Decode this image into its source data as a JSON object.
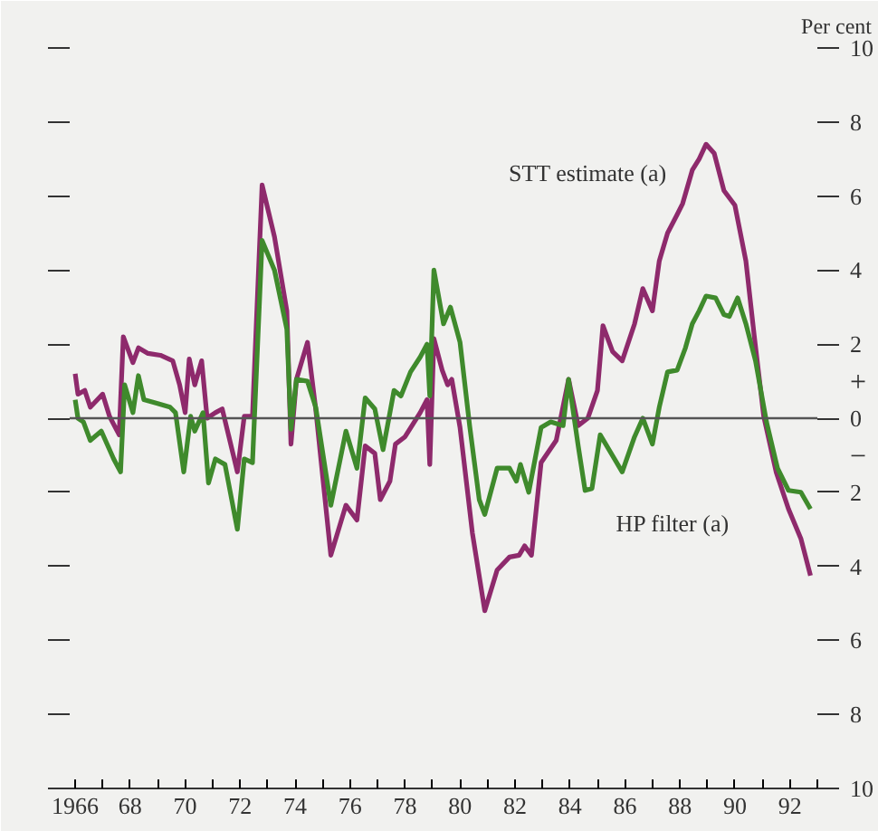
{
  "chart_data": {
    "type": "line",
    "ylabel": "Per cent",
    "xlim": [
      1965.8,
      1993.0
    ],
    "xticks": [
      1966,
      {
        "value": 1968,
        "label": "68"
      },
      {
        "value": 1970,
        "label": "70"
      },
      {
        "value": 1972,
        "label": "72"
      },
      {
        "value": 1974,
        "label": "74"
      },
      {
        "value": 1976,
        "label": "76"
      },
      {
        "value": 1978,
        "label": "78"
      },
      {
        "value": 1980,
        "label": "80"
      },
      {
        "value": 1982,
        "label": "82"
      },
      {
        "value": 1984,
        "label": "84"
      },
      {
        "value": 1986,
        "label": "86"
      },
      {
        "value": 1988,
        "label": "88"
      },
      {
        "value": 1990,
        "label": "90"
      },
      {
        "value": 1992,
        "label": "92"
      }
    ],
    "ylim": [
      -10,
      10
    ],
    "yticks": [
      10,
      8,
      6,
      4,
      2,
      0,
      {
        "value": -2,
        "label": "2"
      },
      {
        "value": -4,
        "label": "4"
      },
      {
        "value": -6,
        "label": "6"
      },
      {
        "value": -8,
        "label": "8"
      },
      {
        "value": -10,
        "label": "10"
      }
    ],
    "tick_labels": "x_y2side",
    "annotations": [
      "+",
      "−"
    ],
    "ref_lines": [
      {
        "axis": "y",
        "value": 0,
        "color": "#555555"
      }
    ],
    "grid": false,
    "marker": "none",
    "line_style": "solid",
    "series": [
      {
        "name": "STT estimate (a)",
        "color": "#8e2a6c",
        "x": [
          1966.0,
          1966.1,
          1966.35,
          1966.55,
          1967.0,
          1967.25,
          1967.6,
          1967.75,
          1968.1,
          1968.3,
          1968.65,
          1969.1,
          1969.55,
          1969.8,
          1970.0,
          1970.15,
          1970.35,
          1970.6,
          1970.8,
          1971.1,
          1971.35,
          1971.9,
          1972.15,
          1972.45,
          1972.8,
          1973.25,
          1973.7,
          1973.85,
          1974.05,
          1974.45,
          1974.75,
          1975.3,
          1975.85,
          1976.25,
          1976.55,
          1976.9,
          1977.1,
          1977.45,
          1977.65,
          1978.0,
          1978.55,
          1978.8,
          1978.9,
          1979.05,
          1979.35,
          1979.55,
          1979.7,
          1980.0,
          1980.45,
          1980.9,
          1981.35,
          1981.8,
          1982.15,
          1982.35,
          1982.6,
          1982.95,
          1983.5,
          1983.95,
          1984.3,
          1984.65,
          1985.0,
          1985.2,
          1985.55,
          1985.9,
          1986.35,
          1986.65,
          1987.0,
          1987.25,
          1987.55,
          1987.9,
          1988.1,
          1988.45,
          1988.7,
          1988.95,
          1989.25,
          1989.6,
          1990.0,
          1990.4,
          1990.7,
          1991.05,
          1991.5,
          1991.95,
          1992.4,
          1992.75
        ],
        "values": [
          1.2,
          0.65,
          0.75,
          0.3,
          0.65,
          0.05,
          -0.45,
          2.2,
          1.5,
          1.9,
          1.75,
          1.7,
          1.55,
          0.9,
          0.15,
          1.6,
          0.9,
          1.55,
          0.0,
          0.15,
          0.25,
          -1.45,
          0.05,
          0.05,
          6.3,
          4.9,
          2.9,
          -0.7,
          1.05,
          2.05,
          0.25,
          -3.7,
          -2.35,
          -2.75,
          -0.75,
          -0.95,
          -2.2,
          -1.7,
          -0.7,
          -0.5,
          0.15,
          0.5,
          -1.25,
          2.15,
          1.3,
          0.9,
          1.05,
          -0.25,
          -3.1,
          -5.2,
          -4.1,
          -3.75,
          -3.7,
          -3.45,
          -3.7,
          -1.2,
          -0.6,
          1.05,
          -0.2,
          0.0,
          0.75,
          2.5,
          1.8,
          1.55,
          2.55,
          3.5,
          2.9,
          4.25,
          5.0,
          5.5,
          5.8,
          6.7,
          7.0,
          7.4,
          7.15,
          6.15,
          5.75,
          4.25,
          2.25,
          0.05,
          -1.45,
          -2.45,
          -3.25,
          -4.25
        ]
      },
      {
        "name": "HP filter  (a)",
        "color": "#3f8a2c",
        "x": [
          1966.0,
          1966.1,
          1966.3,
          1966.55,
          1966.95,
          1967.4,
          1967.65,
          1967.8,
          1968.1,
          1968.3,
          1968.5,
          1969.0,
          1969.45,
          1969.65,
          1969.95,
          1970.2,
          1970.35,
          1970.65,
          1970.85,
          1971.1,
          1971.45,
          1971.9,
          1972.15,
          1972.45,
          1972.8,
          1973.25,
          1973.7,
          1973.85,
          1974.05,
          1974.45,
          1974.75,
          1975.3,
          1975.85,
          1976.25,
          1976.55,
          1976.9,
          1977.2,
          1977.6,
          1977.85,
          1978.2,
          1978.55,
          1978.8,
          1978.9,
          1979.05,
          1979.4,
          1979.65,
          1980.0,
          1980.35,
          1980.7,
          1980.9,
          1981.35,
          1981.8,
          1982.05,
          1982.2,
          1982.5,
          1982.95,
          1983.3,
          1983.75,
          1983.95,
          1984.3,
          1984.55,
          1984.8,
          1985.1,
          1985.9,
          1986.35,
          1986.65,
          1987.0,
          1987.25,
          1987.55,
          1987.9,
          1988.2,
          1988.45,
          1988.7,
          1988.95,
          1989.3,
          1989.6,
          1989.8,
          1990.1,
          1990.4,
          1990.75,
          1991.15,
          1991.55,
          1991.95,
          1992.4,
          1992.75
        ],
        "values": [
          0.5,
          0.0,
          -0.1,
          -0.6,
          -0.35,
          -1.1,
          -1.45,
          0.9,
          0.15,
          1.15,
          0.5,
          0.4,
          0.3,
          0.15,
          -1.45,
          0.05,
          -0.35,
          0.15,
          -1.75,
          -1.1,
          -1.25,
          -3.0,
          -1.1,
          -1.2,
          4.8,
          4.0,
          2.4,
          -0.3,
          1.05,
          1.0,
          0.3,
          -2.35,
          -0.35,
          -1.35,
          0.55,
          0.25,
          -0.85,
          0.75,
          0.6,
          1.25,
          1.65,
          2.0,
          0.6,
          4.0,
          2.55,
          3.0,
          2.05,
          -0.2,
          -2.2,
          -2.6,
          -1.35,
          -1.35,
          -1.7,
          -1.25,
          -2.0,
          -0.25,
          -0.1,
          -0.2,
          1.05,
          -0.75,
          -1.95,
          -1.9,
          -0.45,
          -1.45,
          -0.5,
          0.0,
          -0.7,
          0.3,
          1.25,
          1.3,
          1.9,
          2.55,
          2.9,
          3.3,
          3.25,
          2.8,
          2.75,
          3.25,
          2.55,
          1.55,
          -0.1,
          -1.35,
          -1.95,
          -2.0,
          -2.45
        ]
      }
    ]
  }
}
